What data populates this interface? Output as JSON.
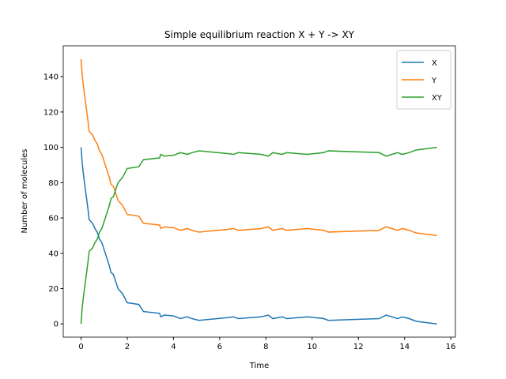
{
  "chart_data": {
    "type": "line",
    "title": "Simple equilibrium reaction X + Y -> XY",
    "x_label": "Time",
    "y_label": "Number of molecules",
    "x": [
      0,
      0.05,
      0.1,
      0.2,
      0.3,
      0.35,
      0.5,
      0.6,
      0.7,
      0.8,
      0.9,
      1.0,
      1.1,
      1.2,
      1.3,
      1.4,
      1.5,
      1.6,
      1.8,
      2.0,
      2.5,
      2.7,
      3.4,
      3.45,
      3.6,
      4.0,
      4.3,
      4.6,
      4.8,
      5.1,
      6.3,
      6.6,
      6.8,
      7.8,
      8.1,
      8.3,
      8.7,
      8.9,
      9.8,
      10.5,
      10.7,
      12.9,
      13.2,
      13.7,
      13.9,
      14.2,
      14.5,
      15.4
    ],
    "series": [
      {
        "name": "X",
        "color": "#1f77b4",
        "values": [
          100,
          91,
          85,
          75,
          65,
          59,
          57,
          54,
          52,
          48,
          46,
          42,
          38,
          34,
          29,
          28,
          24,
          20,
          17,
          12,
          11,
          7,
          6,
          4,
          5,
          4.5,
          3,
          4,
          3,
          2,
          3.5,
          4,
          3,
          4,
          5,
          3,
          4,
          3,
          4,
          3,
          2,
          3,
          5,
          3,
          4,
          3,
          1.5,
          0
        ]
      },
      {
        "name": "Y",
        "color": "#ff7f0e",
        "values": [
          150,
          141,
          135,
          125,
          115,
          109,
          107,
          104,
          102,
          98,
          96,
          92,
          88,
          84,
          79,
          78,
          74,
          70,
          67,
          62,
          61,
          57,
          56,
          54,
          55,
          54.5,
          53,
          54,
          53,
          52,
          53.5,
          54,
          53,
          54,
          55,
          53,
          54,
          53,
          54,
          53,
          52,
          53,
          55,
          53,
          54,
          53,
          51.5,
          50
        ]
      },
      {
        "name": "XY",
        "color": "#2ca02c",
        "values": [
          0,
          9,
          15,
          25,
          35,
          41,
          43,
          46,
          48,
          52,
          54,
          58,
          62,
          66,
          71,
          72,
          76,
          80,
          83,
          88,
          89,
          93,
          94,
          96,
          95,
          95.5,
          97,
          96,
          97,
          98,
          96.5,
          96,
          97,
          96,
          95,
          97,
          96,
          97,
          96,
          97,
          98,
          97,
          95,
          97,
          96,
          97,
          98.5,
          100
        ]
      }
    ],
    "xlim": [
      -0.77,
      16.2
    ],
    "ylim": [
      -7.5,
      157.5
    ],
    "xticks": [
      0,
      2,
      4,
      6,
      8,
      10,
      12,
      14,
      16
    ],
    "yticks": [
      0,
      20,
      40,
      60,
      80,
      100,
      120,
      140
    ],
    "legend": "upper right",
    "grid": false
  }
}
